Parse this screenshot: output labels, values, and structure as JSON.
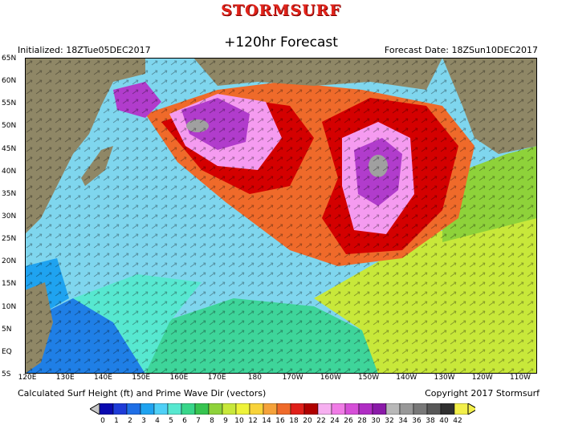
{
  "header": {
    "brand": "STORMSURF",
    "forecast_title": "+120hr Forecast",
    "initialized": "Initialized: 18ZTue05DEC2017",
    "forecast_date": "Forecast Date: 18ZSun10DEC2017"
  },
  "map": {
    "lat_labels": [
      "65N",
      "60N",
      "55N",
      "50N",
      "45N",
      "40N",
      "35N",
      "30N",
      "25N",
      "20N",
      "15N",
      "10N",
      "5N",
      "EQ",
      "5S"
    ],
    "lon_labels": [
      "120E",
      "130E",
      "140E",
      "150E",
      "160E",
      "170E",
      "180",
      "170W",
      "160W",
      "150W",
      "140W",
      "130W",
      "120W",
      "110W"
    ],
    "colors": {
      "land": "#8f8766",
      "ocean_light": "#7fd6ee",
      "ocean_green": "#3ed59a",
      "storm_red": "#d40000",
      "storm_purple": "#b13ccc",
      "storm_pink": "#f59bf0"
    }
  },
  "footer": {
    "left": "Calculated Surf Height (ft) and Prime Wave Dir (vectors)",
    "right": "Copyright 2017 Stormsurf"
  },
  "legend": {
    "labels": [
      "0",
      "1",
      "2",
      "3",
      "4",
      "5",
      "6",
      "7",
      "8",
      "9",
      "10",
      "12",
      "14",
      "16",
      "18",
      "20",
      "22",
      "24",
      "26",
      "28",
      "30",
      "32",
      "34",
      "36",
      "38",
      "40",
      "42"
    ],
    "colors": [
      "#0a0ab0",
      "#1e3cd8",
      "#1f6fe6",
      "#1fa3f0",
      "#4fd0f7",
      "#57e8d0",
      "#38d68a",
      "#37c450",
      "#8ed23a",
      "#c8e83a",
      "#eef33a",
      "#f8d33a",
      "#f5a23a",
      "#ef6a2a",
      "#e0201a",
      "#b00000",
      "#f6b0f0",
      "#f07ce6",
      "#d64fd8",
      "#b02dc4",
      "#8a1aa8",
      "#b8b8b8",
      "#989898",
      "#787878",
      "#585858",
      "#303030",
      "#f2ef4a"
    ]
  }
}
